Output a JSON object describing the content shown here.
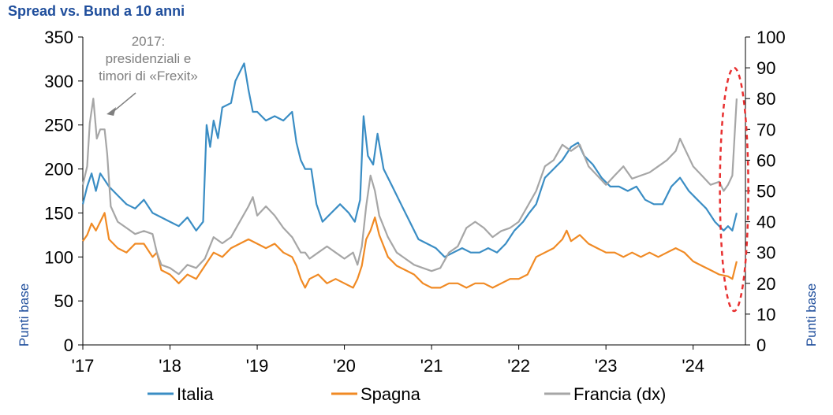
{
  "chart_data": {
    "type": "line",
    "title": "Spread vs. Bund a 10 anni",
    "ylabel_left": "Punti base",
    "ylabel_right": "Punti base",
    "x_ticks": [
      "'17",
      "'18",
      "'19",
      "'20",
      "'21",
      "'22",
      "'23",
      "'24"
    ],
    "x_tick_positions": [
      2017,
      2018,
      2019,
      2020,
      2021,
      2022,
      2023,
      2024
    ],
    "xlim": [
      2017,
      2024.6
    ],
    "ylim_left": [
      0,
      350
    ],
    "yticks_left": [
      "0",
      "50",
      "100",
      "150",
      "200",
      "250",
      "300",
      "350"
    ],
    "ylim_right": [
      0,
      100
    ],
    "yticks_right": [
      "0",
      "10",
      "20",
      "30",
      "40",
      "50",
      "60",
      "70",
      "80",
      "90",
      "100"
    ],
    "annotation": {
      "lines": [
        "2017:",
        "presidenziali e",
        "timori di «Frexit»"
      ],
      "arrow_to": {
        "x": 2017.2,
        "y_right": 78
      }
    },
    "highlight_ellipse": {
      "x_center": 2024.47,
      "y_right_min": 11,
      "y_right_max": 90
    },
    "legend_position": "bottom",
    "series": [
      {
        "name": "Italia",
        "axis": "left",
        "color": "#3a8dc4",
        "points": [
          [
            2017.0,
            160
          ],
          [
            2017.05,
            180
          ],
          [
            2017.1,
            195
          ],
          [
            2017.15,
            175
          ],
          [
            2017.2,
            195
          ],
          [
            2017.3,
            180
          ],
          [
            2017.4,
            170
          ],
          [
            2017.5,
            160
          ],
          [
            2017.6,
            155
          ],
          [
            2017.7,
            165
          ],
          [
            2017.8,
            150
          ],
          [
            2017.9,
            145
          ],
          [
            2018.0,
            140
          ],
          [
            2018.1,
            135
          ],
          [
            2018.2,
            145
          ],
          [
            2018.3,
            130
          ],
          [
            2018.38,
            140
          ],
          [
            2018.42,
            250
          ],
          [
            2018.46,
            225
          ],
          [
            2018.5,
            255
          ],
          [
            2018.55,
            235
          ],
          [
            2018.6,
            270
          ],
          [
            2018.7,
            275
          ],
          [
            2018.75,
            300
          ],
          [
            2018.8,
            310
          ],
          [
            2018.85,
            320
          ],
          [
            2018.9,
            290
          ],
          [
            2018.95,
            265
          ],
          [
            2019.0,
            265
          ],
          [
            2019.1,
            255
          ],
          [
            2019.2,
            260
          ],
          [
            2019.3,
            255
          ],
          [
            2019.4,
            265
          ],
          [
            2019.45,
            230
          ],
          [
            2019.5,
            210
          ],
          [
            2019.55,
            200
          ],
          [
            2019.62,
            200
          ],
          [
            2019.68,
            160
          ],
          [
            2019.75,
            140
          ],
          [
            2019.85,
            150
          ],
          [
            2019.95,
            160
          ],
          [
            2020.05,
            150
          ],
          [
            2020.12,
            140
          ],
          [
            2020.18,
            165
          ],
          [
            2020.22,
            260
          ],
          [
            2020.27,
            215
          ],
          [
            2020.33,
            205
          ],
          [
            2020.38,
            240
          ],
          [
            2020.45,
            200
          ],
          [
            2020.55,
            180
          ],
          [
            2020.65,
            160
          ],
          [
            2020.75,
            140
          ],
          [
            2020.85,
            120
          ],
          [
            2020.95,
            115
          ],
          [
            2021.05,
            110
          ],
          [
            2021.15,
            100
          ],
          [
            2021.25,
            105
          ],
          [
            2021.35,
            110
          ],
          [
            2021.45,
            105
          ],
          [
            2021.55,
            105
          ],
          [
            2021.65,
            110
          ],
          [
            2021.75,
            105
          ],
          [
            2021.85,
            115
          ],
          [
            2021.95,
            130
          ],
          [
            2022.05,
            140
          ],
          [
            2022.12,
            150
          ],
          [
            2022.2,
            160
          ],
          [
            2022.3,
            190
          ],
          [
            2022.4,
            200
          ],
          [
            2022.5,
            210
          ],
          [
            2022.6,
            225
          ],
          [
            2022.68,
            230
          ],
          [
            2022.75,
            215
          ],
          [
            2022.85,
            205
          ],
          [
            2022.95,
            190
          ],
          [
            2023.05,
            180
          ],
          [
            2023.15,
            180
          ],
          [
            2023.25,
            175
          ],
          [
            2023.35,
            180
          ],
          [
            2023.45,
            165
          ],
          [
            2023.55,
            160
          ],
          [
            2023.65,
            160
          ],
          [
            2023.75,
            180
          ],
          [
            2023.85,
            190
          ],
          [
            2023.95,
            175
          ],
          [
            2024.05,
            165
          ],
          [
            2024.15,
            155
          ],
          [
            2024.25,
            140
          ],
          [
            2024.3,
            135
          ],
          [
            2024.35,
            130
          ],
          [
            2024.4,
            135
          ],
          [
            2024.45,
            130
          ],
          [
            2024.5,
            150
          ]
        ]
      },
      {
        "name": "Spagna",
        "axis": "left",
        "color": "#f08a24",
        "points": [
          [
            2017.0,
            118
          ],
          [
            2017.05,
            125
          ],
          [
            2017.1,
            138
          ],
          [
            2017.15,
            130
          ],
          [
            2017.2,
            140
          ],
          [
            2017.25,
            150
          ],
          [
            2017.3,
            120
          ],
          [
            2017.4,
            110
          ],
          [
            2017.5,
            105
          ],
          [
            2017.6,
            115
          ],
          [
            2017.7,
            115
          ],
          [
            2017.8,
            100
          ],
          [
            2017.85,
            105
          ],
          [
            2017.9,
            85
          ],
          [
            2018.0,
            80
          ],
          [
            2018.05,
            75
          ],
          [
            2018.1,
            70
          ],
          [
            2018.2,
            80
          ],
          [
            2018.3,
            75
          ],
          [
            2018.4,
            90
          ],
          [
            2018.5,
            105
          ],
          [
            2018.6,
            100
          ],
          [
            2018.7,
            110
          ],
          [
            2018.8,
            115
          ],
          [
            2018.9,
            120
          ],
          [
            2019.0,
            115
          ],
          [
            2019.1,
            110
          ],
          [
            2019.2,
            115
          ],
          [
            2019.3,
            105
          ],
          [
            2019.4,
            100
          ],
          [
            2019.45,
            90
          ],
          [
            2019.5,
            75
          ],
          [
            2019.55,
            65
          ],
          [
            2019.6,
            75
          ],
          [
            2019.7,
            80
          ],
          [
            2019.8,
            70
          ],
          [
            2019.9,
            75
          ],
          [
            2020.0,
            70
          ],
          [
            2020.1,
            65
          ],
          [
            2020.15,
            75
          ],
          [
            2020.2,
            90
          ],
          [
            2020.25,
            120
          ],
          [
            2020.3,
            130
          ],
          [
            2020.35,
            145
          ],
          [
            2020.4,
            125
          ],
          [
            2020.5,
            100
          ],
          [
            2020.6,
            90
          ],
          [
            2020.7,
            85
          ],
          [
            2020.8,
            80
          ],
          [
            2020.9,
            70
          ],
          [
            2021.0,
            65
          ],
          [
            2021.1,
            65
          ],
          [
            2021.2,
            70
          ],
          [
            2021.3,
            70
          ],
          [
            2021.4,
            65
          ],
          [
            2021.5,
            70
          ],
          [
            2021.6,
            70
          ],
          [
            2021.7,
            65
          ],
          [
            2021.8,
            70
          ],
          [
            2021.9,
            75
          ],
          [
            2022.0,
            75
          ],
          [
            2022.1,
            80
          ],
          [
            2022.2,
            100
          ],
          [
            2022.3,
            105
          ],
          [
            2022.4,
            110
          ],
          [
            2022.5,
            120
          ],
          [
            2022.55,
            130
          ],
          [
            2022.6,
            118
          ],
          [
            2022.7,
            125
          ],
          [
            2022.8,
            115
          ],
          [
            2022.9,
            110
          ],
          [
            2023.0,
            105
          ],
          [
            2023.1,
            105
          ],
          [
            2023.2,
            100
          ],
          [
            2023.3,
            105
          ],
          [
            2023.4,
            100
          ],
          [
            2023.5,
            105
          ],
          [
            2023.6,
            100
          ],
          [
            2023.7,
            105
          ],
          [
            2023.8,
            110
          ],
          [
            2023.9,
            105
          ],
          [
            2024.0,
            95
          ],
          [
            2024.1,
            90
          ],
          [
            2024.2,
            85
          ],
          [
            2024.3,
            80
          ],
          [
            2024.4,
            78
          ],
          [
            2024.45,
            75
          ],
          [
            2024.5,
            95
          ]
        ]
      },
      {
        "name": "Francia (dx)",
        "axis": "right",
        "color": "#a6a6a6",
        "points": [
          [
            2017.0,
            52
          ],
          [
            2017.05,
            58
          ],
          [
            2017.08,
            72
          ],
          [
            2017.12,
            80
          ],
          [
            2017.16,
            67
          ],
          [
            2017.2,
            70
          ],
          [
            2017.25,
            70
          ],
          [
            2017.28,
            62
          ],
          [
            2017.32,
            45
          ],
          [
            2017.4,
            40
          ],
          [
            2017.5,
            38
          ],
          [
            2017.6,
            36
          ],
          [
            2017.7,
            37
          ],
          [
            2017.8,
            36
          ],
          [
            2017.85,
            30
          ],
          [
            2017.9,
            26
          ],
          [
            2018.0,
            25
          ],
          [
            2018.1,
            23
          ],
          [
            2018.2,
            26
          ],
          [
            2018.3,
            25
          ],
          [
            2018.4,
            28
          ],
          [
            2018.5,
            35
          ],
          [
            2018.6,
            33
          ],
          [
            2018.7,
            35
          ],
          [
            2018.8,
            40
          ],
          [
            2018.9,
            45
          ],
          [
            2018.95,
            48
          ],
          [
            2019.0,
            42
          ],
          [
            2019.1,
            45
          ],
          [
            2019.2,
            42
          ],
          [
            2019.3,
            38
          ],
          [
            2019.4,
            35
          ],
          [
            2019.5,
            30
          ],
          [
            2019.55,
            30
          ],
          [
            2019.6,
            28
          ],
          [
            2019.7,
            30
          ],
          [
            2019.8,
            32
          ],
          [
            2019.9,
            30
          ],
          [
            2020.0,
            28
          ],
          [
            2020.1,
            30
          ],
          [
            2020.15,
            26
          ],
          [
            2020.2,
            32
          ],
          [
            2020.25,
            45
          ],
          [
            2020.3,
            55
          ],
          [
            2020.35,
            50
          ],
          [
            2020.4,
            42
          ],
          [
            2020.5,
            35
          ],
          [
            2020.6,
            30
          ],
          [
            2020.7,
            28
          ],
          [
            2020.8,
            26
          ],
          [
            2020.9,
            25
          ],
          [
            2021.0,
            24
          ],
          [
            2021.1,
            25
          ],
          [
            2021.2,
            30
          ],
          [
            2021.3,
            32
          ],
          [
            2021.4,
            38
          ],
          [
            2021.5,
            40
          ],
          [
            2021.6,
            38
          ],
          [
            2021.7,
            35
          ],
          [
            2021.8,
            37
          ],
          [
            2021.9,
            38
          ],
          [
            2022.0,
            40
          ],
          [
            2022.1,
            45
          ],
          [
            2022.2,
            50
          ],
          [
            2022.3,
            58
          ],
          [
            2022.4,
            60
          ],
          [
            2022.5,
            65
          ],
          [
            2022.6,
            63
          ],
          [
            2022.7,
            65
          ],
          [
            2022.8,
            58
          ],
          [
            2022.9,
            55
          ],
          [
            2023.0,
            52
          ],
          [
            2023.1,
            55
          ],
          [
            2023.2,
            58
          ],
          [
            2023.3,
            54
          ],
          [
            2023.4,
            55
          ],
          [
            2023.5,
            56
          ],
          [
            2023.6,
            58
          ],
          [
            2023.7,
            60
          ],
          [
            2023.8,
            63
          ],
          [
            2023.85,
            67
          ],
          [
            2023.9,
            64
          ],
          [
            2024.0,
            58
          ],
          [
            2024.1,
            55
          ],
          [
            2024.2,
            52
          ],
          [
            2024.3,
            53
          ],
          [
            2024.35,
            50
          ],
          [
            2024.4,
            52
          ],
          [
            2024.45,
            55
          ],
          [
            2024.5,
            80
          ]
        ]
      }
    ]
  }
}
